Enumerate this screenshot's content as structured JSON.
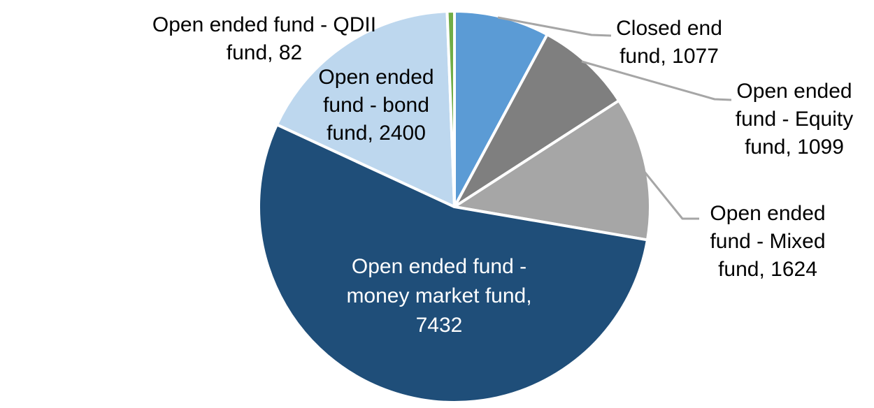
{
  "page": {
    "background_color": "#ffffff"
  },
  "chart_data": {
    "type": "pie",
    "title": "",
    "legend": "none",
    "direction": "clockwise",
    "start_angle_deg": 0,
    "total": 13714,
    "slice_border_color": "#FFFFFF",
    "leader_line_color": "#A6A6A6",
    "slices": [
      {
        "name": "Closed end fund",
        "value": 1077,
        "color": "#5B9BD5"
      },
      {
        "name": "Open ended fund - Equity fund",
        "value": 1099,
        "color": "#7F7F7F"
      },
      {
        "name": "Open ended fund - Mixed fund",
        "value": 1624,
        "color": "#A6A6A6"
      },
      {
        "name": "Open ended fund - money market fund",
        "value": 7432,
        "color": "#1F4E79"
      },
      {
        "name": "Open ended fund - bond fund",
        "value": 2400,
        "color": "#BDD7EE"
      },
      {
        "name": "Open ended fund - QDII fund",
        "value": 82,
        "color": "#70AD47"
      }
    ],
    "data_labels": [
      {
        "slice": "Closed end fund",
        "text": "Closed end fund, 1077",
        "lines": [
          "Closed end",
          "fund, 1077"
        ],
        "placement": "outside-right",
        "color": "#000000",
        "leader_line": true
      },
      {
        "slice": "Open ended fund - Equity fund",
        "text": "Open ended fund - Equity fund, 1099",
        "lines": [
          "Open ended",
          "fund - Equity",
          "fund, 1099"
        ],
        "placement": "outside-right",
        "color": "#000000",
        "leader_line": true
      },
      {
        "slice": "Open ended fund - Mixed fund",
        "text": "Open ended fund - Mixed fund, 1624",
        "lines": [
          "Open ended",
          "fund - Mixed",
          "fund, 1624"
        ],
        "placement": "outside-right",
        "color": "#000000",
        "leader_line": true
      },
      {
        "slice": "Open ended fund - money market fund",
        "text": "Open ended fund - money market fund, 7432",
        "lines": [
          "Open ended fund -",
          "money market fund,",
          "7432"
        ],
        "placement": "inside",
        "color": "#FFFFFF",
        "leader_line": false
      },
      {
        "slice": "Open ended fund - bond fund",
        "text": "Open ended fund - bond fund, 2400",
        "lines": [
          "Open ended",
          "fund - bond",
          "fund, 2400"
        ],
        "placement": "outside-left",
        "color": "#000000",
        "leader_line": false
      },
      {
        "slice": "Open ended fund - QDII fund",
        "text": "Open ended fund - QDII fund, 82",
        "lines": [
          "Open ended fund - QDII",
          "fund, 82"
        ],
        "placement": "outside-left",
        "color": "#000000",
        "leader_line": false
      }
    ]
  }
}
